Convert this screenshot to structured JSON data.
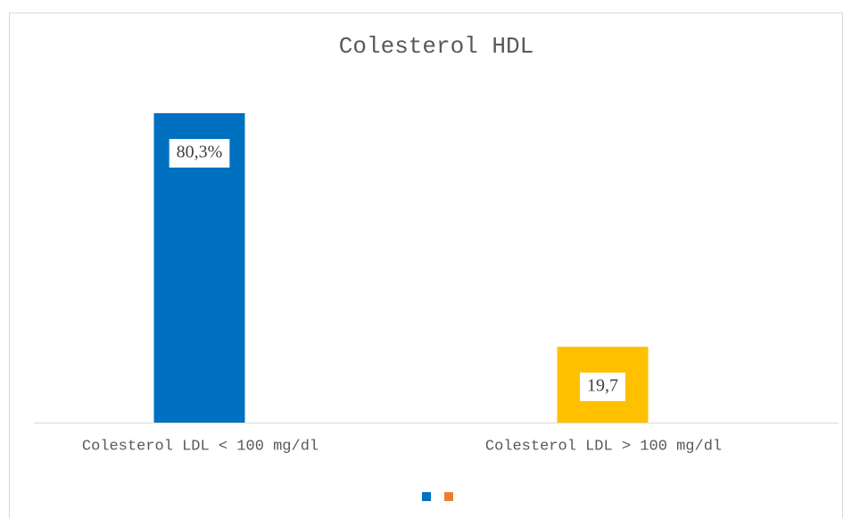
{
  "chart_data": {
    "type": "bar",
    "title": "Colesterol HDL",
    "categories": [
      "Colesterol LDL < 100 mg/dl",
      "Colesterol LDL > 100 mg/dl"
    ],
    "values": [
      80.3,
      19.7
    ],
    "value_labels": [
      "80,3%",
      "19,7"
    ],
    "colors": [
      "#0070c0",
      "#ffc000"
    ],
    "legend_colors": [
      "#0070c0",
      "#ed7d31"
    ],
    "ylim": [
      0,
      90
    ]
  }
}
